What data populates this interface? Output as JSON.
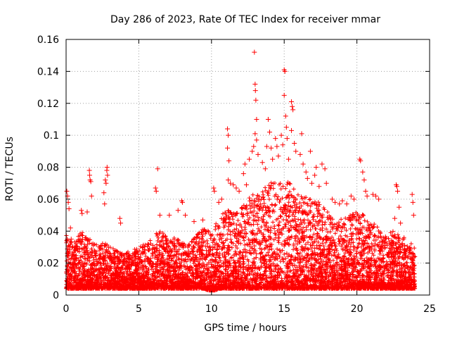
{
  "chart_data": {
    "type": "scatter",
    "title": "Day 286 of 2023, Rate Of TEC Index for receiver mmar",
    "xlabel": "GPS time / hours",
    "ylabel": "ROTI / TECUs",
    "xlim": [
      0,
      25
    ],
    "ylim": [
      0,
      0.16
    ],
    "x_ticks": [
      0,
      5,
      10,
      15,
      20,
      25
    ],
    "y_ticks": [
      0,
      0.02,
      0.04,
      0.06,
      0.08,
      0.1,
      0.12,
      0.14,
      0.16
    ],
    "x_tick_labels": [
      "0",
      "5",
      "10",
      "15",
      "20",
      "25"
    ],
    "y_tick_labels": [
      "0",
      "0.02",
      "0.04",
      "0.06",
      "0.08",
      "0.1",
      "0.12",
      "0.14",
      "0.16"
    ],
    "grid": true,
    "marker": "+",
    "color": "#ff0000",
    "series": [
      {
        "points": [
          [
            0.05,
            0.065
          ],
          [
            0.1,
            0.062
          ],
          [
            0.15,
            0.058
          ],
          [
            0.2,
            0.054
          ],
          [
            0.3,
            0.042
          ],
          [
            0.35,
            0.035
          ],
          [
            1.05,
            0.053
          ],
          [
            1.1,
            0.051
          ],
          [
            1.45,
            0.052
          ],
          [
            1.6,
            0.078
          ],
          [
            1.62,
            0.075
          ],
          [
            1.65,
            0.072
          ],
          [
            1.7,
            0.071
          ],
          [
            1.75,
            0.062
          ],
          [
            2.6,
            0.064
          ],
          [
            2.65,
            0.057
          ],
          [
            2.7,
            0.072
          ],
          [
            2.75,
            0.07
          ],
          [
            2.8,
            0.078
          ],
          [
            2.82,
            0.08
          ],
          [
            2.85,
            0.075
          ],
          [
            3.7,
            0.048
          ],
          [
            3.75,
            0.045
          ],
          [
            6.3,
            0.079
          ],
          [
            6.15,
            0.067
          ],
          [
            6.2,
            0.065
          ],
          [
            6.45,
            0.05
          ],
          [
            7.1,
            0.05
          ],
          [
            7.7,
            0.053
          ],
          [
            7.95,
            0.059
          ],
          [
            8.0,
            0.058
          ],
          [
            8.2,
            0.05
          ],
          [
            8.8,
            0.046
          ],
          [
            9.4,
            0.047
          ],
          [
            10.15,
            0.067
          ],
          [
            10.2,
            0.065
          ],
          [
            10.5,
            0.058
          ],
          [
            10.7,
            0.06
          ],
          [
            11.1,
            0.104
          ],
          [
            11.15,
            0.1
          ],
          [
            11.1,
            0.092
          ],
          [
            11.2,
            0.084
          ],
          [
            11.15,
            0.072
          ],
          [
            11.3,
            0.07
          ],
          [
            11.5,
            0.069
          ],
          [
            11.7,
            0.067
          ],
          [
            11.9,
            0.065
          ],
          [
            12.2,
            0.076
          ],
          [
            12.3,
            0.082
          ],
          [
            12.4,
            0.069
          ],
          [
            12.6,
            0.085
          ],
          [
            12.8,
            0.09
          ],
          [
            12.9,
            0.093
          ],
          [
            12.95,
            0.152
          ],
          [
            13.0,
            0.132
          ],
          [
            13.02,
            0.128
          ],
          [
            13.05,
            0.122
          ],
          [
            13.1,
            0.11
          ],
          [
            13.0,
            0.101
          ],
          [
            13.1,
            0.097
          ],
          [
            13.2,
            0.088
          ],
          [
            13.5,
            0.083
          ],
          [
            13.7,
            0.079
          ],
          [
            13.8,
            0.093
          ],
          [
            13.9,
            0.11
          ],
          [
            14.0,
            0.102
          ],
          [
            14.1,
            0.092
          ],
          [
            14.2,
            0.085
          ],
          [
            14.4,
            0.098
          ],
          [
            14.5,
            0.093
          ],
          [
            14.6,
            0.087
          ],
          [
            14.8,
            0.1
          ],
          [
            14.9,
            0.094
          ],
          [
            15.0,
            0.141
          ],
          [
            15.05,
            0.14
          ],
          [
            15.0,
            0.125
          ],
          [
            15.1,
            0.112
          ],
          [
            15.15,
            0.105
          ],
          [
            15.2,
            0.098
          ],
          [
            15.3,
            0.085
          ],
          [
            15.5,
            0.121
          ],
          [
            15.55,
            0.118
          ],
          [
            15.6,
            0.116
          ],
          [
            15.5,
            0.103
          ],
          [
            15.7,
            0.095
          ],
          [
            15.8,
            0.09
          ],
          [
            16.1,
            0.088
          ],
          [
            16.2,
            0.101
          ],
          [
            16.3,
            0.082
          ],
          [
            16.5,
            0.077
          ],
          [
            16.6,
            0.073
          ],
          [
            16.8,
            0.09
          ],
          [
            16.9,
            0.07
          ],
          [
            17.1,
            0.075
          ],
          [
            17.2,
            0.08
          ],
          [
            17.4,
            0.068
          ],
          [
            17.6,
            0.082
          ],
          [
            17.8,
            0.079
          ],
          [
            17.9,
            0.07
          ],
          [
            18.3,
            0.06
          ],
          [
            18.5,
            0.058
          ],
          [
            18.8,
            0.057
          ],
          [
            19.0,
            0.059
          ],
          [
            19.3,
            0.057
          ],
          [
            19.6,
            0.062
          ],
          [
            19.8,
            0.06
          ],
          [
            20.2,
            0.085
          ],
          [
            20.25,
            0.084
          ],
          [
            20.4,
            0.077
          ],
          [
            20.5,
            0.072
          ],
          [
            20.6,
            0.065
          ],
          [
            20.7,
            0.062
          ],
          [
            21.1,
            0.063
          ],
          [
            21.3,
            0.062
          ],
          [
            21.5,
            0.06
          ],
          [
            22.7,
            0.069
          ],
          [
            22.75,
            0.068
          ],
          [
            22.8,
            0.065
          ],
          [
            22.6,
            0.048
          ],
          [
            22.9,
            0.055
          ],
          [
            23.0,
            0.045
          ],
          [
            23.8,
            0.063
          ],
          [
            23.85,
            0.058
          ],
          [
            23.9,
            0.05
          ]
        ]
      }
    ],
    "dense_band": {
      "x_range": [
        0,
        24
      ],
      "profile": [
        [
          0,
          0.004,
          0.038
        ],
        [
          0.5,
          0.004,
          0.032
        ],
        [
          1,
          0.004,
          0.04
        ],
        [
          1.5,
          0.004,
          0.036
        ],
        [
          2,
          0.004,
          0.032
        ],
        [
          2.5,
          0.004,
          0.034
        ],
        [
          3,
          0.004,
          0.03
        ],
        [
          3.5,
          0.004,
          0.028
        ],
        [
          4,
          0.004,
          0.026
        ],
        [
          4.5,
          0.004,
          0.028
        ],
        [
          5,
          0.004,
          0.03
        ],
        [
          5.5,
          0.004,
          0.034
        ],
        [
          6,
          0.004,
          0.036
        ],
        [
          6.5,
          0.004,
          0.042
        ],
        [
          7,
          0.004,
          0.036
        ],
        [
          7.5,
          0.004,
          0.036
        ],
        [
          8,
          0.004,
          0.034
        ],
        [
          8.5,
          0.004,
          0.032
        ],
        [
          9,
          0.004,
          0.038
        ],
        [
          9.5,
          0.004,
          0.042
        ],
        [
          10,
          0.002,
          0.04
        ],
        [
          10.5,
          0.004,
          0.048
        ],
        [
          11,
          0.004,
          0.055
        ],
        [
          11.5,
          0.004,
          0.052
        ],
        [
          12,
          0.004,
          0.055
        ],
        [
          12.5,
          0.004,
          0.06
        ],
        [
          13,
          0.004,
          0.066
        ],
        [
          13.5,
          0.004,
          0.065
        ],
        [
          14,
          0.004,
          0.072
        ],
        [
          14.5,
          0.004,
          0.07
        ],
        [
          15,
          0.004,
          0.072
        ],
        [
          15.5,
          0.004,
          0.07
        ],
        [
          16,
          0.004,
          0.064
        ],
        [
          16.5,
          0.004,
          0.062
        ],
        [
          17,
          0.004,
          0.06
        ],
        [
          17.5,
          0.004,
          0.058
        ],
        [
          18,
          0.004,
          0.052
        ],
        [
          18.5,
          0.004,
          0.05
        ],
        [
          19,
          0.004,
          0.048
        ],
        [
          19.5,
          0.004,
          0.05
        ],
        [
          20,
          0.004,
          0.052
        ],
        [
          20.5,
          0.004,
          0.05
        ],
        [
          21,
          0.004,
          0.046
        ],
        [
          21.5,
          0.004,
          0.042
        ],
        [
          22,
          0.004,
          0.038
        ],
        [
          22.5,
          0.004,
          0.04
        ],
        [
          23,
          0.004,
          0.038
        ],
        [
          23.5,
          0.004,
          0.036
        ],
        [
          24,
          0.004,
          0.03
        ]
      ]
    }
  }
}
